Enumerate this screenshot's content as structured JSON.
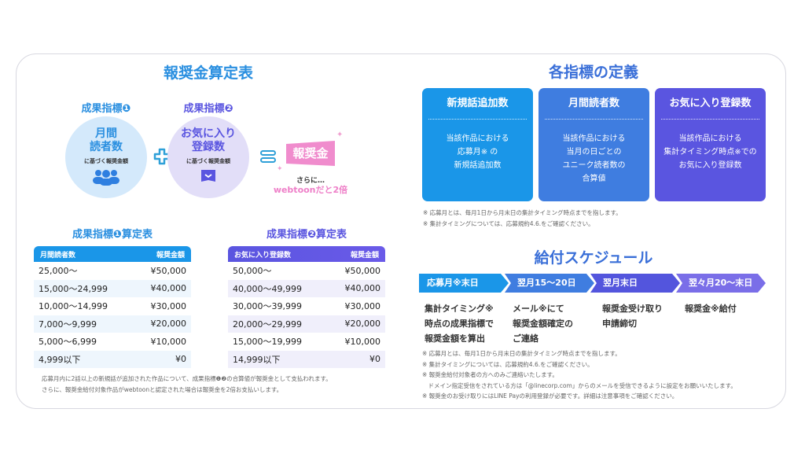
{
  "colors": {
    "blue": "#1a96e8",
    "purple": "#5a55e0",
    "pink": "#ee7fc8"
  },
  "left": {
    "title": "報奨金算定表",
    "metric1": {
      "label": "成果指標❶",
      "big": "月間\n読者数",
      "small": "に基づく報奨金額",
      "icon": "people-icon"
    },
    "metric2": {
      "label": "成果指標❷",
      "big": "お気に入り\n登録数",
      "small": "に基づく報奨金額",
      "icon": "book-icon"
    },
    "result": {
      "flag": "報奨金",
      "sub": "さらに…",
      "bonus": "webtoonだと2倍"
    },
    "table1": {
      "title": "成果指標❶算定表",
      "headers": [
        "月間読者数",
        "報奨金額"
      ],
      "rows": [
        [
          "25,000〜",
          "¥50,000"
        ],
        [
          "15,000〜24,999",
          "¥40,000"
        ],
        [
          "10,000〜14,999",
          "¥30,000"
        ],
        [
          "7,000〜9,999",
          "¥20,000"
        ],
        [
          "5,000〜6,999",
          "¥10,000"
        ],
        [
          "4,999以下",
          "¥0"
        ]
      ]
    },
    "table2": {
      "title": "成果指標❷算定表",
      "headers": [
        "お気に入り登録数",
        "報奨金額"
      ],
      "rows": [
        [
          "50,000〜",
          "¥50,000"
        ],
        [
          "40,000〜49,999",
          "¥40,000"
        ],
        [
          "30,000〜39,999",
          "¥30,000"
        ],
        [
          "20,000〜29,999",
          "¥20,000"
        ],
        [
          "15,000〜19,999",
          "¥10,000"
        ],
        [
          "14,999以下",
          "¥0"
        ]
      ]
    },
    "notes": [
      "応募月内に2話以上の新規話が追加された作品について、成果指標❶❷の合算値が報奨金として支払われます。",
      "さらに、報奨金給付対象作品がwebtoonと認定された場合は報奨金を2倍お支払いします。"
    ]
  },
  "right": {
    "title": "各指標の定義",
    "defs": [
      {
        "h": "新規話追加数",
        "b": "当該作品における\n応募月※ の\n新規話追加数"
      },
      {
        "h": "月間読者数",
        "b": "当該作品における\n当月の日ごとの\nユニーク読者数の\n合算値"
      },
      {
        "h": "お気に入り登録数",
        "b": "当該作品における\n集計タイミング時点※での\nお気に入り登録数"
      }
    ],
    "def_notes": [
      "※  応募月とは、毎月1日から月末日の集計タイミング時点までを指します。",
      "※  集計タイミングについては、応募規約4.6.をご確認ください。"
    ],
    "schedule_title": "給付スケジュール",
    "steps": [
      {
        "h": "応募月※末日",
        "b": "集計タイミング※\n時点の成果指標で\n報奨金額を算出"
      },
      {
        "h": "翌月15〜20日",
        "b": "メール※にて\n報奨金額確定の\nご連絡"
      },
      {
        "h": "翌月末日",
        "b": "報奨金受け取り\n申請締切"
      },
      {
        "h": "翌々月20〜末日",
        "b": "報奨金※給付"
      }
    ],
    "schedule_notes": [
      "※ 応募月とは、毎月1日から月末日の集計タイミング時点までを指します。",
      "※ 集計タイミングについては、応募規約4.6.をご確認ください。",
      "※ 報奨金給付対象者の方へのみご連絡いたします。",
      "　ドメイン指定受信をされている方は「@linecorp.com」からのメールを受信できるように設定をお願いいたします。",
      "※ 報奨金のお受け取りにはLINE Payの利用登録が必要です。詳細は注意事項をご確認ください。"
    ]
  }
}
